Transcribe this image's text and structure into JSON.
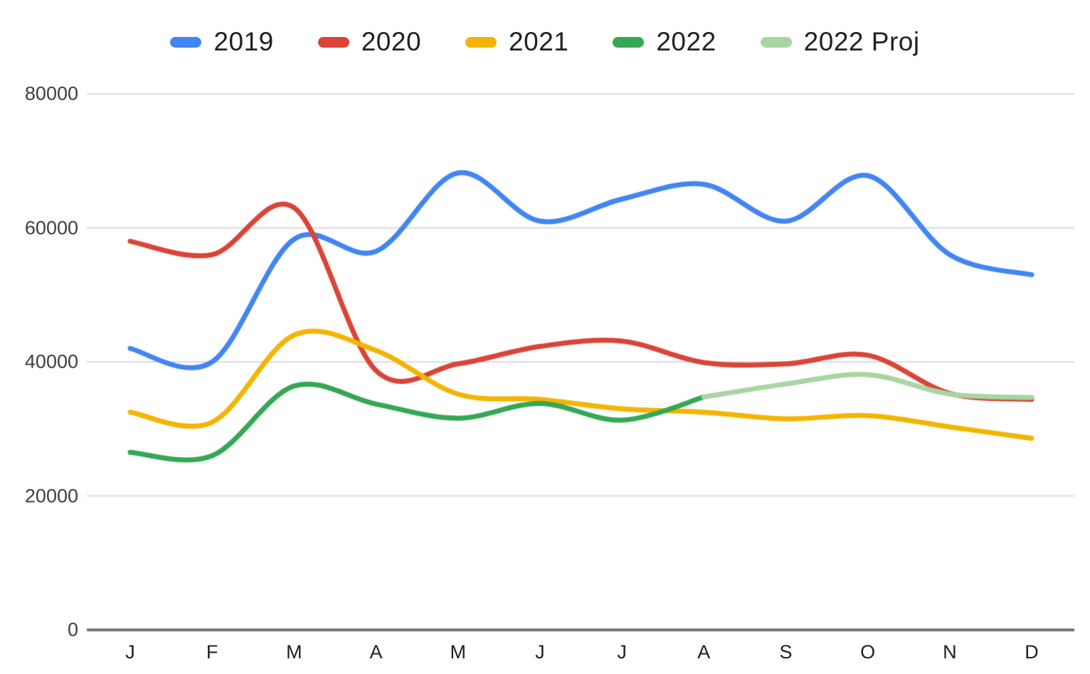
{
  "chart": {
    "legend_items": [
      {
        "label": "2019",
        "color": "#4285F4"
      },
      {
        "label": "2020",
        "color": "#DB4437"
      },
      {
        "label": "2021",
        "color": "#F4B400"
      },
      {
        "label": "2022",
        "color": "#34A853"
      },
      {
        "label": "2022 Proj",
        "color": "#A8D5A2"
      }
    ],
    "colors": {
      "gridline": "#DADCE0",
      "axis_line": "#757575",
      "y_label": "#3c4043",
      "x_label": "#202124",
      "background": "#ffffff"
    }
  },
  "chart_data": {
    "type": "line",
    "title": "",
    "xlabel": "",
    "ylabel": "",
    "categories": [
      "J",
      "F",
      "M",
      "A",
      "M",
      "J",
      "J",
      "A",
      "S",
      "O",
      "N",
      "D"
    ],
    "y_ticks": [
      {
        "label": "80000",
        "value": 80000
      },
      {
        "label": "60000",
        "value": 60000
      },
      {
        "label": "40000",
        "value": 40000
      },
      {
        "label": "20000",
        "value": 20000
      },
      {
        "label": "0",
        "value": 0
      }
    ],
    "ylim": [
      0,
      80000
    ],
    "grid": true,
    "smooth": true,
    "legend_position": "top",
    "line_width": 7,
    "series": [
      {
        "name": "2019",
        "color": "#4285F4",
        "values": [
          42000,
          40000,
          58300,
          56500,
          68200,
          61000,
          64300,
          66500,
          61000,
          67800,
          56000,
          53000
        ]
      },
      {
        "name": "2020",
        "color": "#DB4437",
        "values": [
          58000,
          56000,
          63000,
          38700,
          39700,
          42300,
          43100,
          39900,
          39700,
          41000,
          35300,
          34400
        ]
      },
      {
        "name": "2021",
        "color": "#F4B400",
        "values": [
          32500,
          31000,
          44000,
          41700,
          35200,
          34400,
          33000,
          32500,
          31500,
          32000,
          30300,
          28600
        ]
      },
      {
        "name": "2022",
        "color": "#34A853",
        "values": [
          26500,
          26000,
          36400,
          33700,
          31600,
          33800,
          31300,
          34750,
          null,
          null,
          null,
          null
        ]
      },
      {
        "name": "2022 Proj",
        "color": "#A8D5A2",
        "values": [
          null,
          null,
          null,
          null,
          null,
          null,
          null,
          34750,
          36700,
          38100,
          35200,
          34700
        ]
      }
    ]
  }
}
